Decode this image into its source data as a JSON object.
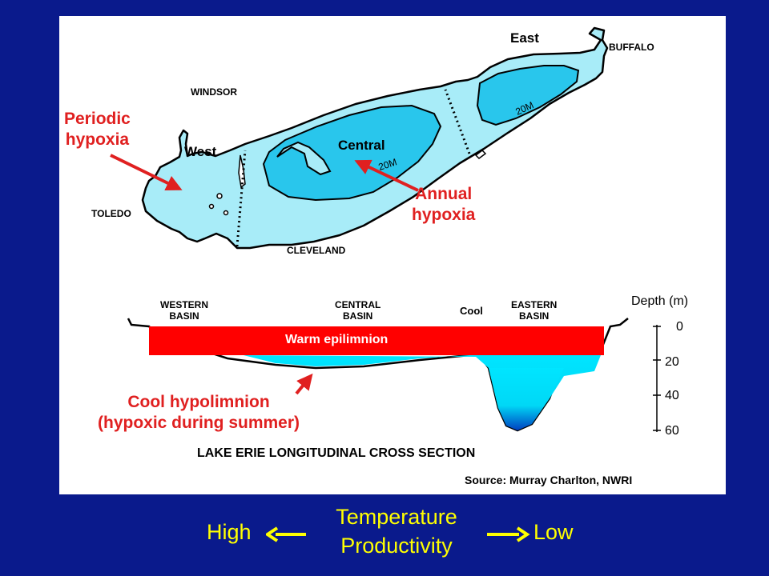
{
  "map": {
    "cities": {
      "buffalo": "BUFFALO",
      "windsor": "WINDSOR",
      "toledo": "TOLEDO",
      "cleveland": "CLEVELAND"
    },
    "regions": {
      "east": "East",
      "west": "West",
      "central": "Central"
    },
    "contour_labels": [
      "20M",
      "20M"
    ],
    "annotations": {
      "periodic_line1": "Periodic",
      "periodic_line2": "hypoxia",
      "annual_line1": "Annual",
      "annual_line2": "hypoxia"
    }
  },
  "cross_section": {
    "basins": {
      "western_line1": "WESTERN",
      "western_line2": "BASIN",
      "central_line1": "CENTRAL",
      "central_line2": "BASIN",
      "eastern_line1": "EASTERN",
      "eastern_line2": "BASIN"
    },
    "cool_label": "Cool",
    "epilimnion_label": "Warm epilimnion",
    "hypolimnion_line1": "Cool hypolimnion",
    "hypolimnion_line2": "(hypoxic during summer)",
    "title": "LAKE ERIE LONGITUDINAL CROSS SECTION",
    "depth_axis": {
      "label": "Depth (m)",
      "ticks": [
        "0",
        "20",
        "40",
        "60"
      ]
    }
  },
  "source": "Source: Murray Charlton, NWRI",
  "legend": {
    "high": "High",
    "low": "Low",
    "line1": "Temperature",
    "line2": "Productivity"
  },
  "colors": {
    "background": "#0a1a8c",
    "lake_shallow": "#a8ecf8",
    "lake_deep": "#29c6ec",
    "epilimnion": "#ff0000",
    "hypolimnion": "#00e5ff",
    "annotation_red": "#e02020",
    "legend_yellow": "#ffff00"
  }
}
